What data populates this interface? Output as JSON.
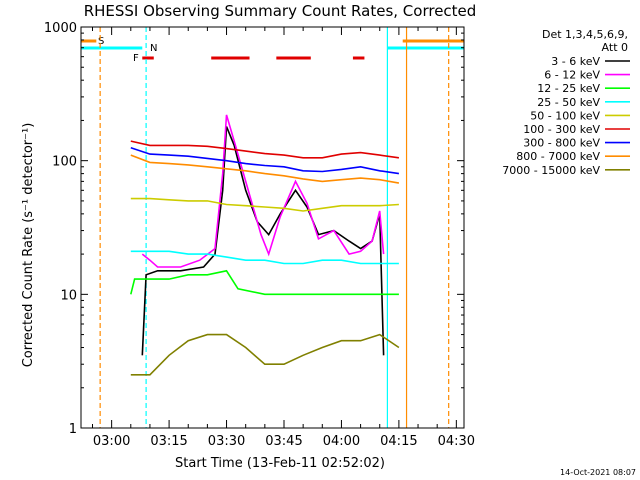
{
  "chart_data": {
    "type": "line",
    "title": "RHESSI Observing Summary Count Rates, Corrected",
    "xlabel": "Start Time (13-Feb-11 02:52:02)",
    "ylabel": "Corrected Count Rate (s⁻¹ detector⁻¹)",
    "x_unit": "minutes (HH:MM UT on 13-Feb-11)",
    "xlim": [
      "02:52",
      "04:32"
    ],
    "ylim": [
      1,
      1000
    ],
    "yscale": "log",
    "x_ticks": [
      "03:00",
      "03:15",
      "03:30",
      "03:45",
      "04:00",
      "04:15",
      "04:30"
    ],
    "y_ticks": [
      "1",
      "10",
      "100",
      "1000"
    ],
    "legend_title": "Det 1,3,4,5,6,9,\nAtt 0",
    "legend_position": "right",
    "series": [
      {
        "name": "3 - 6 keV",
        "color": "#000000",
        "points": [
          [
            "03:08",
            3.5
          ],
          [
            "03:09",
            14
          ],
          [
            "03:12",
            15
          ],
          [
            "03:18",
            15
          ],
          [
            "03:24",
            16
          ],
          [
            "03:27",
            20
          ],
          [
            "03:29",
            60
          ],
          [
            "03:30",
            180
          ],
          [
            "03:32",
            130
          ],
          [
            "03:35",
            60
          ],
          [
            "03:38",
            35
          ],
          [
            "03:41",
            28
          ],
          [
            "03:44",
            40
          ],
          [
            "03:48",
            60
          ],
          [
            "03:51",
            45
          ],
          [
            "03:54",
            28
          ],
          [
            "03:58",
            30
          ],
          [
            "04:02",
            25
          ],
          [
            "04:05",
            22
          ],
          [
            "04:08",
            25
          ],
          [
            "04:10",
            40
          ],
          [
            "04:11",
            3.5
          ]
        ]
      },
      {
        "name": "6 - 12 keV",
        "color": "#ff00ff",
        "points": [
          [
            "03:08",
            20
          ],
          [
            "03:10",
            18
          ],
          [
            "03:12",
            16
          ],
          [
            "03:18",
            16
          ],
          [
            "03:23",
            18
          ],
          [
            "03:27",
            22
          ],
          [
            "03:29",
            80
          ],
          [
            "03:30",
            220
          ],
          [
            "03:32",
            140
          ],
          [
            "03:35",
            70
          ],
          [
            "03:39",
            28
          ],
          [
            "03:41",
            20
          ],
          [
            "03:44",
            38
          ],
          [
            "03:48",
            70
          ],
          [
            "03:51",
            48
          ],
          [
            "03:54",
            26
          ],
          [
            "03:58",
            30
          ],
          [
            "04:02",
            20
          ],
          [
            "04:05",
            21
          ],
          [
            "04:08",
            25
          ],
          [
            "04:10",
            42
          ],
          [
            "04:11",
            20
          ]
        ]
      },
      {
        "name": "12 - 25 keV",
        "color": "#00ff00",
        "points": [
          [
            "03:05",
            10
          ],
          [
            "03:06",
            13
          ],
          [
            "03:10",
            13
          ],
          [
            "03:15",
            13
          ],
          [
            "03:20",
            14
          ],
          [
            "03:25",
            14
          ],
          [
            "03:30",
            15
          ],
          [
            "03:33",
            11
          ],
          [
            "03:40",
            10
          ],
          [
            "03:50",
            10
          ],
          [
            "04:00",
            10
          ],
          [
            "04:10",
            10
          ],
          [
            "04:15",
            10
          ]
        ]
      },
      {
        "name": "25 - 50 keV",
        "color": "#00ffff",
        "points": [
          [
            "03:05",
            21
          ],
          [
            "03:10",
            21
          ],
          [
            "03:15",
            21
          ],
          [
            "03:20",
            20
          ],
          [
            "03:25",
            20
          ],
          [
            "03:30",
            19
          ],
          [
            "03:35",
            18
          ],
          [
            "03:40",
            18
          ],
          [
            "03:45",
            17
          ],
          [
            "03:50",
            17
          ],
          [
            "03:55",
            18
          ],
          [
            "04:00",
            18
          ],
          [
            "04:05",
            17
          ],
          [
            "04:10",
            17
          ],
          [
            "04:15",
            17
          ]
        ]
      },
      {
        "name": "50 - 100 keV",
        "color": "#cccc00",
        "points": [
          [
            "03:05",
            52
          ],
          [
            "03:10",
            52
          ],
          [
            "03:15",
            51
          ],
          [
            "03:20",
            50
          ],
          [
            "03:25",
            50
          ],
          [
            "03:30",
            47
          ],
          [
            "03:35",
            46
          ],
          [
            "03:40",
            45
          ],
          [
            "03:45",
            44
          ],
          [
            "03:50",
            42
          ],
          [
            "03:55",
            44
          ],
          [
            "04:00",
            46
          ],
          [
            "04:05",
            46
          ],
          [
            "04:10",
            46
          ],
          [
            "04:15",
            47
          ]
        ]
      },
      {
        "name": "100 - 300 keV",
        "color": "#e00000",
        "points": [
          [
            "03:05",
            140
          ],
          [
            "03:10",
            130
          ],
          [
            "03:15",
            130
          ],
          [
            "03:20",
            130
          ],
          [
            "03:25",
            128
          ],
          [
            "03:30",
            123
          ],
          [
            "03:35",
            118
          ],
          [
            "03:40",
            113
          ],
          [
            "03:45",
            110
          ],
          [
            "03:50",
            105
          ],
          [
            "03:55",
            105
          ],
          [
            "04:00",
            112
          ],
          [
            "04:05",
            115
          ],
          [
            "04:10",
            110
          ],
          [
            "04:15",
            105
          ]
        ]
      },
      {
        "name": "300 - 800 keV",
        "color": "#0000ff",
        "points": [
          [
            "03:05",
            125
          ],
          [
            "03:10",
            112
          ],
          [
            "03:15",
            110
          ],
          [
            "03:20",
            108
          ],
          [
            "03:25",
            104
          ],
          [
            "03:30",
            100
          ],
          [
            "03:35",
            95
          ],
          [
            "03:40",
            92
          ],
          [
            "03:45",
            90
          ],
          [
            "03:50",
            84
          ],
          [
            "03:55",
            83
          ],
          [
            "04:00",
            86
          ],
          [
            "04:05",
            90
          ],
          [
            "04:10",
            84
          ],
          [
            "04:15",
            80
          ]
        ]
      },
      {
        "name": "800 - 7000 keV",
        "color": "#ff8c00",
        "points": [
          [
            "03:05",
            110
          ],
          [
            "03:10",
            97
          ],
          [
            "03:15",
            95
          ],
          [
            "03:20",
            93
          ],
          [
            "03:25",
            90
          ],
          [
            "03:30",
            87
          ],
          [
            "03:35",
            84
          ],
          [
            "03:40",
            80
          ],
          [
            "03:45",
            77
          ],
          [
            "03:50",
            73
          ],
          [
            "03:55",
            70
          ],
          [
            "04:00",
            72
          ],
          [
            "04:05",
            74
          ],
          [
            "04:10",
            72
          ],
          [
            "04:15",
            68
          ]
        ]
      },
      {
        "name": "7000 - 15000 keV",
        "color": "#808000",
        "points": [
          [
            "03:05",
            2.5
          ],
          [
            "03:10",
            2.5
          ],
          [
            "03:15",
            3.5
          ],
          [
            "03:20",
            4.5
          ],
          [
            "03:25",
            5
          ],
          [
            "03:30",
            5
          ],
          [
            "03:35",
            4
          ],
          [
            "03:40",
            3
          ],
          [
            "03:45",
            3
          ],
          [
            "03:50",
            3.5
          ],
          [
            "03:55",
            4
          ],
          [
            "04:00",
            4.5
          ],
          [
            "04:05",
            4.5
          ],
          [
            "04:10",
            5
          ],
          [
            "04:15",
            4
          ]
        ]
      }
    ],
    "annotations": {
      "s_label": "S",
      "n_label": "N",
      "f_label": "F",
      "saa_bar": {
        "from": "02:52",
        "to": "02:56",
        "color": "#ff8c00"
      },
      "night_bars": [
        {
          "from": "02:52",
          "to": "03:08",
          "color": "#00ffff"
        },
        {
          "from": "04:12",
          "to": "04:32",
          "color": "#00ffff"
        }
      ],
      "day_bar": {
        "from": "04:16",
        "to": "04:32",
        "color": "#ff8c00"
      },
      "flare_bars": [
        [
          "03:08",
          "03:11"
        ],
        [
          "03:26",
          "03:36"
        ],
        [
          "03:43",
          "03:52"
        ],
        [
          "04:03",
          "04:06"
        ]
      ],
      "vlines": [
        {
          "x": "02:57",
          "color": "#ff8c00",
          "dashed": true
        },
        {
          "x": "03:09",
          "color": "#00ffff",
          "dashed": true
        },
        {
          "x": "04:12",
          "color": "#00ffff",
          "dashed": false
        },
        {
          "x": "04:17",
          "color": "#ff8c00",
          "dashed": false
        },
        {
          "x": "04:28",
          "color": "#ff8c00",
          "dashed": true
        }
      ]
    },
    "footer_timestamp": "14-Oct-2021 08:07"
  }
}
